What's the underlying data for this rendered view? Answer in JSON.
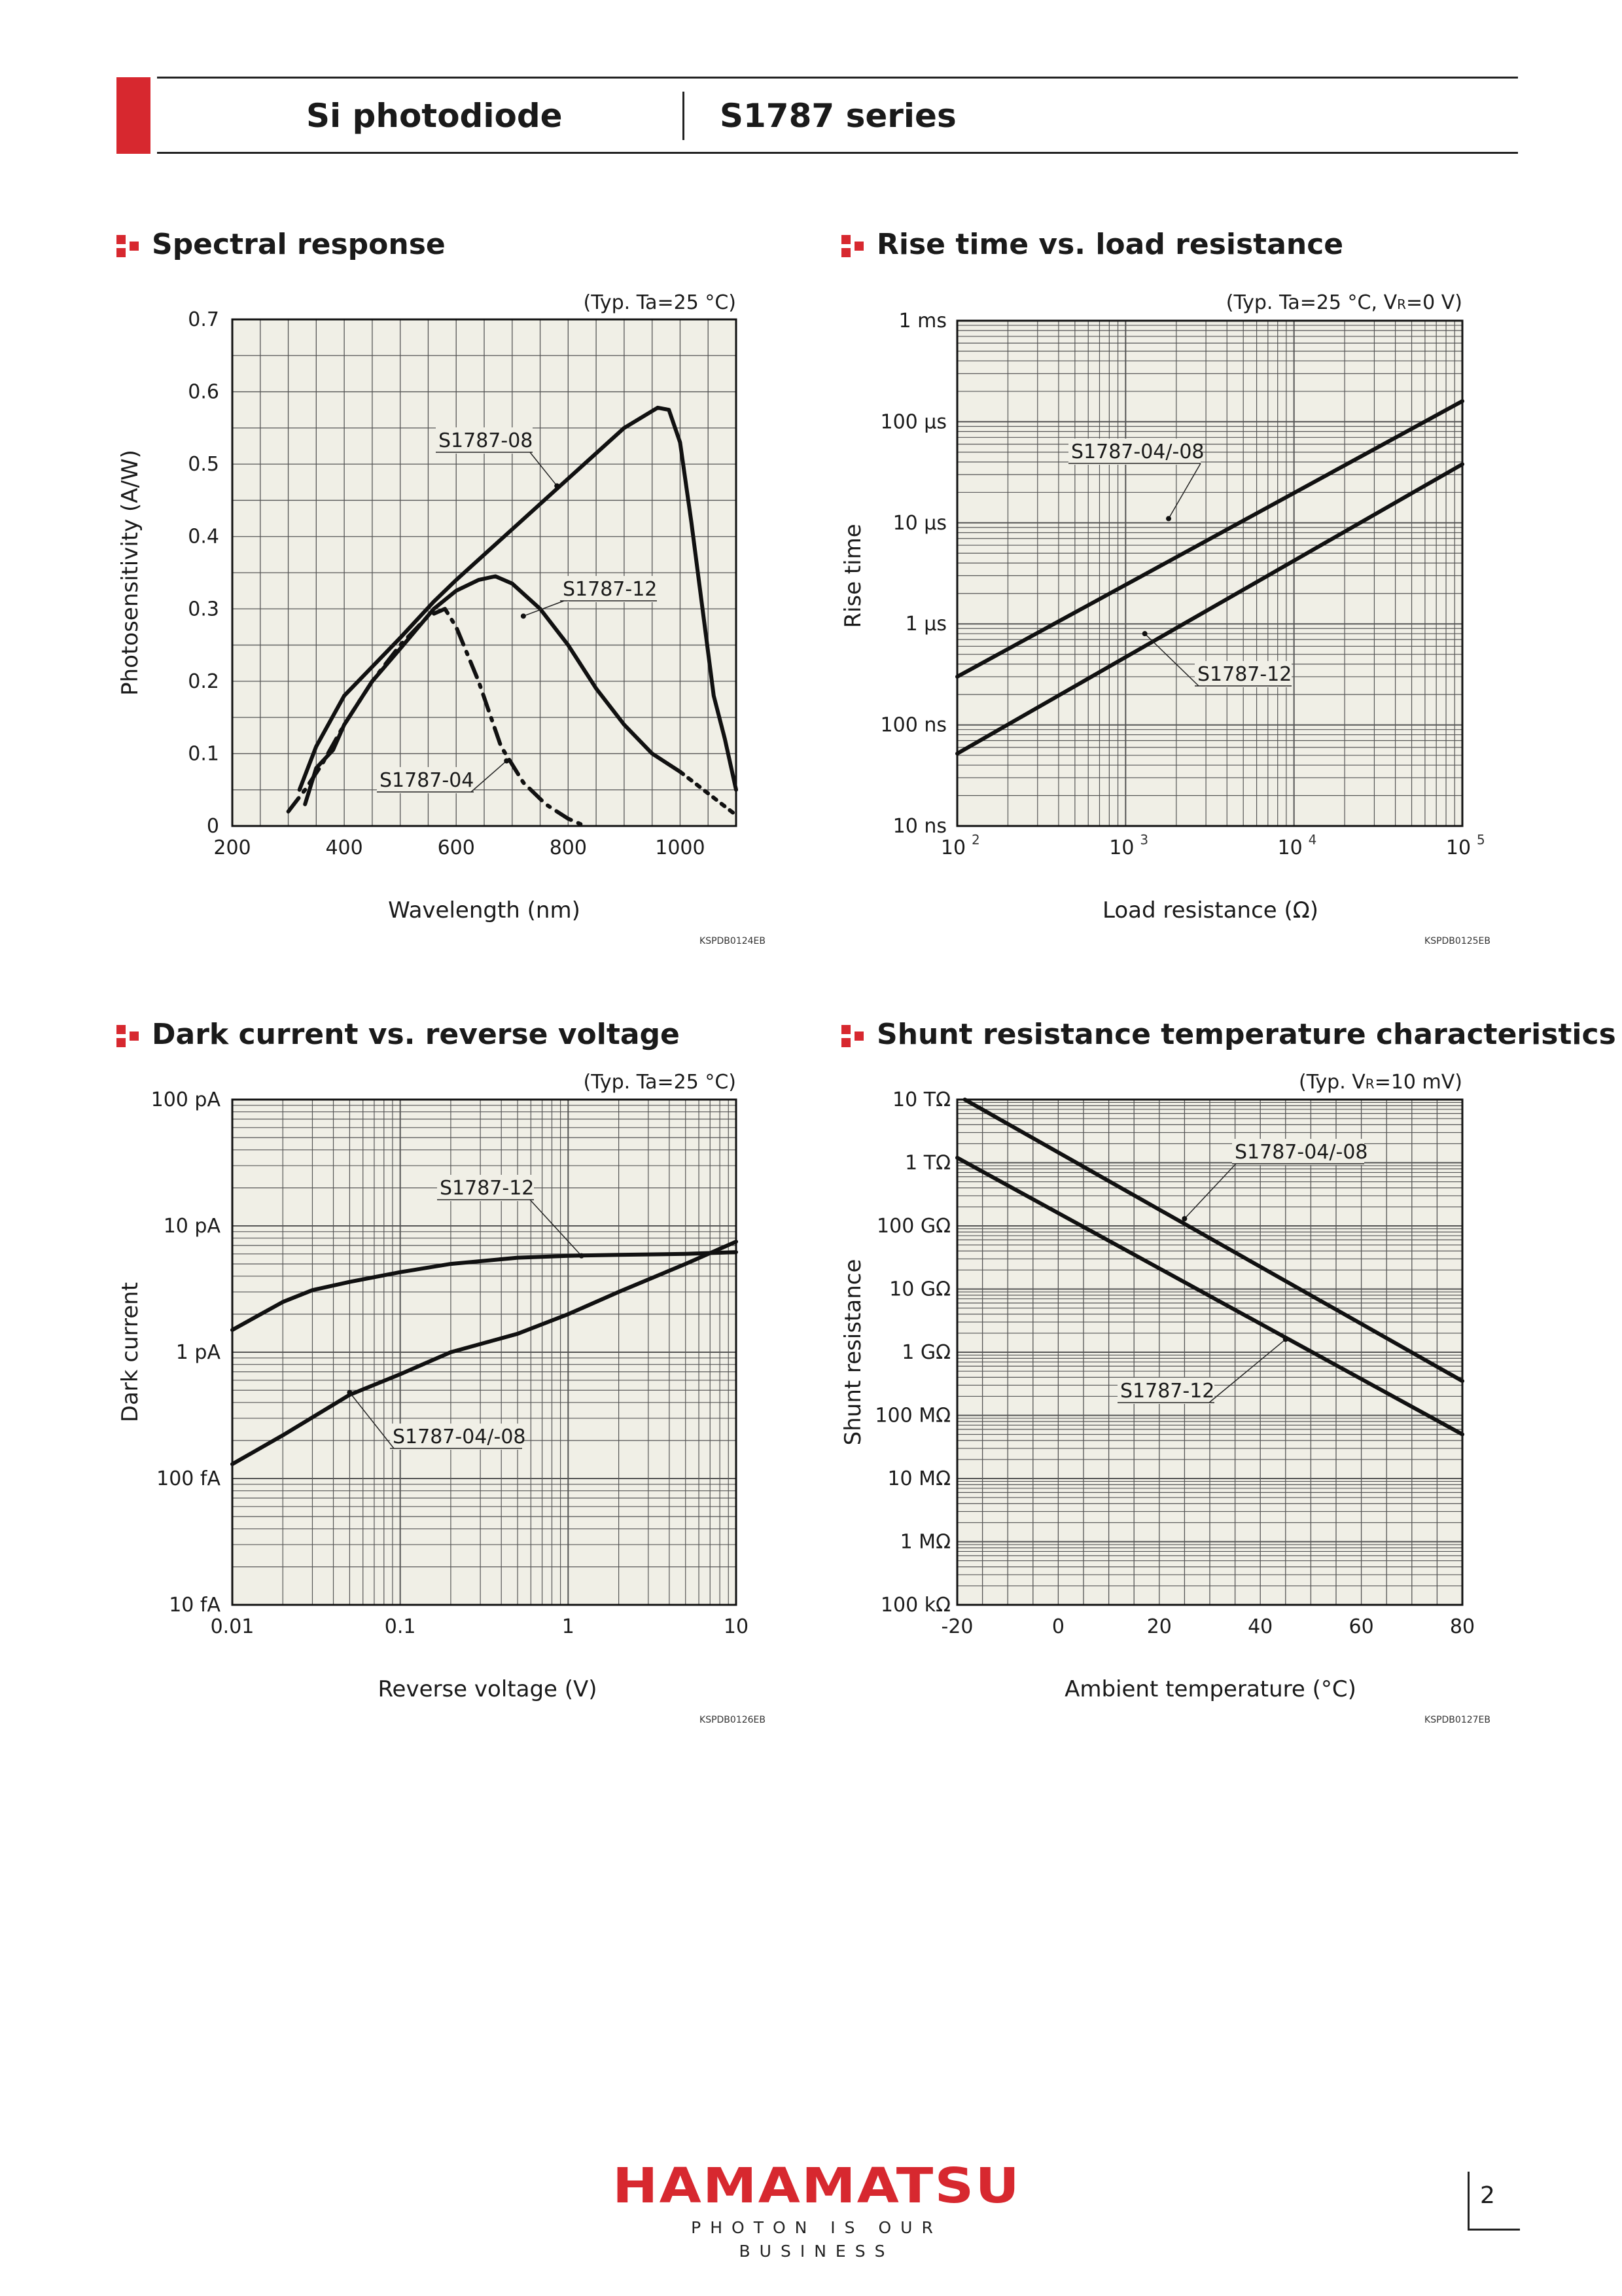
{
  "header": {
    "left_title": "Si photodiode",
    "right_title": "S1787 series"
  },
  "footer": {
    "logo": "HAMAMATSU",
    "tagline": "PHOTON IS OUR BUSINESS",
    "page_number": "2"
  },
  "chart_data": [
    {
      "id": "spectral",
      "type": "line",
      "title": "Spectral response",
      "condition": "(Typ. Ta=25 °C)",
      "xlabel": "Wavelength (nm)",
      "ylabel": "Photosensitivity (A/W)",
      "xscale": "linear",
      "yscale": "linear",
      "xlim": [
        200,
        1100
      ],
      "ylim": [
        0,
        0.7
      ],
      "xticks": [
        200,
        400,
        600,
        800,
        1000
      ],
      "xtick_labels": [
        "200",
        "400",
        "600",
        "800",
        "1000"
      ],
      "yticks": [
        0,
        0.1,
        0.2,
        0.3,
        0.4,
        0.5,
        0.6,
        0.7
      ],
      "ytick_labels": [
        "0",
        "0.1",
        "0.2",
        "0.3",
        "0.4",
        "0.5",
        "0.6",
        "0.7"
      ],
      "grid": true,
      "code": "KSPDB0124EB",
      "series": [
        {
          "name": "S1787-08",
          "style": "solid",
          "x": [
            320,
            350,
            400,
            450,
            500,
            560,
            600,
            700,
            800,
            900,
            960,
            980,
            1000,
            1020,
            1040,
            1060,
            1080,
            1100
          ],
          "y": [
            0.05,
            0.11,
            0.18,
            0.22,
            0.26,
            0.31,
            0.34,
            0.41,
            0.48,
            0.55,
            0.578,
            0.575,
            0.53,
            0.42,
            0.3,
            0.18,
            0.12,
            0.05
          ]
        },
        {
          "name": "S1787-12",
          "style": "solid",
          "x": [
            330,
            350,
            380,
            400,
            450,
            500,
            560,
            600,
            640,
            670,
            700,
            750,
            800,
            850,
            900,
            950,
            1000
          ],
          "y": [
            0.03,
            0.08,
            0.105,
            0.14,
            0.2,
            0.245,
            0.3,
            0.325,
            0.34,
            0.345,
            0.335,
            0.3,
            0.25,
            0.19,
            0.14,
            0.1,
            0.075
          ]
        },
        {
          "name": "S1787-04",
          "style": "dashdot",
          "x": [
            300,
            330,
            360,
            400,
            450,
            500,
            550,
            580,
            600,
            640,
            680,
            720,
            760,
            800,
            830
          ],
          "y": [
            0.02,
            0.05,
            0.085,
            0.14,
            0.2,
            0.25,
            0.29,
            0.3,
            0.275,
            0.2,
            0.11,
            0.06,
            0.03,
            0.01,
            0.0
          ]
        },
        {
          "name": "S1787-12",
          "style": "dotted",
          "x": [
            1000,
            1050,
            1100
          ],
          "y": [
            0.075,
            0.045,
            0.015
          ]
        }
      ],
      "annotations": [
        {
          "text": "S1787-08",
          "target": [
            780,
            0.47
          ]
        },
        {
          "text": "S1787-12",
          "target": [
            720,
            0.29
          ]
        },
        {
          "text": "S1787-04",
          "target": [
            690,
            0.09
          ]
        }
      ]
    },
    {
      "id": "risetime",
      "type": "line",
      "title": "Rise time vs. load resistance",
      "condition": "(Typ. Ta=25 °C, V",
      "condition_sub": "R",
      "condition_end": "=0 V)",
      "xlabel": "Load resistance (Ω)",
      "ylabel": "Rise time",
      "xscale": "log",
      "yscale": "log",
      "xlim": [
        100,
        100000
      ],
      "ylim": [
        1e-08,
        0.001
      ],
      "xtick_base": [
        "10",
        "10",
        "10",
        "10"
      ],
      "xtick_exp": [
        "2",
        "3",
        "4",
        "5"
      ],
      "ytick_labels": [
        "10 ns",
        "100 ns",
        "1 μs",
        "10 μs",
        "100 μs",
        "1 ms"
      ],
      "grid": true,
      "code": "KSPDB0125EB",
      "series": [
        {
          "name": "S1787-04/-08",
          "style": "solid",
          "x": [
            100,
            100000
          ],
          "y": [
            3e-07,
            0.00016
          ]
        },
        {
          "name": "S1787-12",
          "style": "solid",
          "x": [
            100,
            100000
          ],
          "y": [
            5.2e-08,
            3.8e-05
          ]
        }
      ],
      "annotations": [
        {
          "text": "S1787-04/-08",
          "target": [
            1800,
            1.1e-05
          ]
        },
        {
          "text": "S1787-12",
          "target": [
            1300,
            8e-07
          ]
        }
      ]
    },
    {
      "id": "darkcurrent",
      "type": "line",
      "title": "Dark current vs. reverse voltage",
      "condition": "(Typ. Ta=25 °C)",
      "xlabel": "Reverse voltage (V)",
      "ylabel": "Dark current",
      "xscale": "log",
      "yscale": "log",
      "xlim": [
        0.01,
        10
      ],
      "ylim": [
        1e-14,
        1e-10
      ],
      "xtick_labels": [
        "0.01",
        "0.1",
        "1",
        "10"
      ],
      "ytick_labels": [
        "10 fA",
        "100 fA",
        "1 pA",
        "10 pA",
        "100 pA"
      ],
      "grid": true,
      "code": "KSPDB0126EB",
      "series": [
        {
          "name": "S1787-12",
          "style": "solid",
          "x": [
            0.01,
            0.02,
            0.03,
            0.05,
            0.1,
            0.2,
            0.5,
            1,
            2,
            5,
            10
          ],
          "y": [
            1.5e-12,
            2.5e-12,
            3.1e-12,
            3.6e-12,
            4.3e-12,
            5e-12,
            5.6e-12,
            5.8e-12,
            5.9e-12,
            6e-12,
            6.2e-12
          ]
        },
        {
          "name": "S1787-04/-08",
          "style": "solid",
          "x": [
            0.01,
            0.02,
            0.05,
            0.1,
            0.2,
            0.5,
            1,
            2,
            5,
            10
          ],
          "y": [
            1.3e-13,
            2.2e-13,
            4.6e-13,
            6.7e-13,
            1e-12,
            1.4e-12,
            2e-12,
            3e-12,
            5e-12,
            7.5e-12
          ]
        }
      ],
      "annotations": [
        {
          "text": "S1787-12",
          "target": [
            1.2,
            5.8e-12
          ]
        },
        {
          "text": "S1787-04/-08",
          "target": [
            0.05,
            4.8e-13
          ]
        }
      ]
    },
    {
      "id": "shunt",
      "type": "line",
      "title": "Shunt resistance temperature characteristics",
      "condition": "(Typ. V",
      "condition_sub": "R",
      "condition_end": "=10 mV)",
      "xlabel": "Ambient temperature (°C)",
      "ylabel": "Shunt resistance",
      "xscale": "linear",
      "yscale": "log",
      "xlim": [
        -20,
        80
      ],
      "ylim": [
        100000,
        10000000000000.0
      ],
      "xticks": [
        -20,
        0,
        20,
        40,
        60,
        80
      ],
      "xtick_labels": [
        "-20",
        "0",
        "20",
        "40",
        "60",
        "80"
      ],
      "ytick_labels": [
        "100 kΩ",
        "1 MΩ",
        "10 MΩ",
        "100 MΩ",
        "1 GΩ",
        "10 GΩ",
        "100 GΩ",
        "1 TΩ",
        "10 TΩ"
      ],
      "grid": true,
      "code": "KSPDB0127EB",
      "series": [
        {
          "name": "S1787-04/-08",
          "style": "solid",
          "x": [
            -18.5,
            80
          ],
          "y": [
            10000000000000.0,
            350000000.0
          ]
        },
        {
          "name": "S1787-12",
          "style": "solid",
          "x": [
            -20,
            80
          ],
          "y": [
            1200000000000.0,
            50000000.0
          ]
        }
      ],
      "annotations": [
        {
          "text": "S1787-04/-08",
          "target": [
            25,
            130000000000.0
          ]
        },
        {
          "text": "S1787-12",
          "target": [
            45,
            1600000000.0
          ]
        }
      ]
    }
  ]
}
